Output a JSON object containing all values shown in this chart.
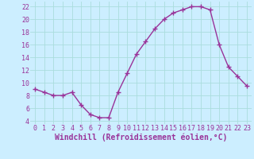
{
  "x": [
    0,
    1,
    2,
    3,
    4,
    5,
    6,
    7,
    8,
    9,
    10,
    11,
    12,
    13,
    14,
    15,
    16,
    17,
    18,
    19,
    20,
    21,
    22,
    23
  ],
  "y": [
    9,
    8.5,
    8,
    8,
    8.5,
    6.5,
    5,
    4.5,
    4.5,
    8.5,
    11.5,
    14.5,
    16.5,
    18.5,
    20,
    21,
    21.5,
    22,
    22,
    21.5,
    16,
    12.5,
    11,
    9.5
  ],
  "line_color": "#993399",
  "marker": "+",
  "bg_color": "#cceeff",
  "grid_color": "#aadddd",
  "xlabel": "Windchill (Refroidissement éolien,°C)",
  "xlabel_fontsize": 7,
  "ylim": [
    3.5,
    22.8
  ],
  "xlim": [
    -0.5,
    23.5
  ],
  "yticks": [
    4,
    6,
    8,
    10,
    12,
    14,
    16,
    18,
    20,
    22
  ],
  "xticks": [
    0,
    1,
    2,
    3,
    4,
    5,
    6,
    7,
    8,
    9,
    10,
    11,
    12,
    13,
    14,
    15,
    16,
    17,
    18,
    19,
    20,
    21,
    22,
    23
  ],
  "tick_fontsize": 6,
  "line_width": 1.0,
  "marker_size": 4
}
